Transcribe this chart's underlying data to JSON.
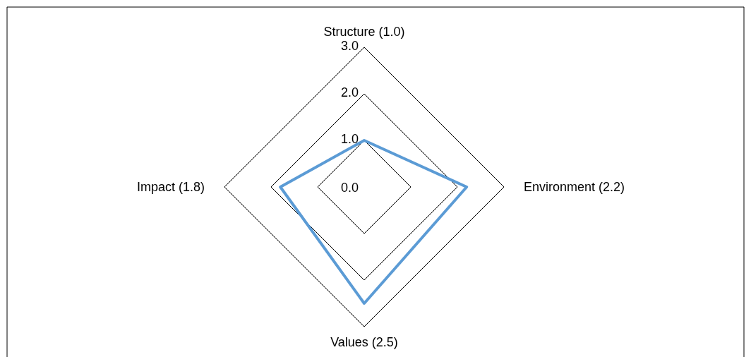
{
  "chart_data": {
    "type": "radar",
    "categories": [
      "Structure (1.0)",
      "Environment (2.2)",
      "Values (2.5)",
      "Impact (1.8)"
    ],
    "series": [
      {
        "color": "#5b9bd5",
        "values": [
          1.0,
          2.2,
          2.5,
          1.8
        ]
      }
    ],
    "ylim": [
      0,
      3
    ],
    "yticks": [
      {
        "value": 0,
        "label": "0.0"
      },
      {
        "value": 1,
        "label": "1.0"
      },
      {
        "value": 2,
        "label": "2.0"
      },
      {
        "value": 3,
        "label": "3.0"
      }
    ],
    "grid": true
  }
}
